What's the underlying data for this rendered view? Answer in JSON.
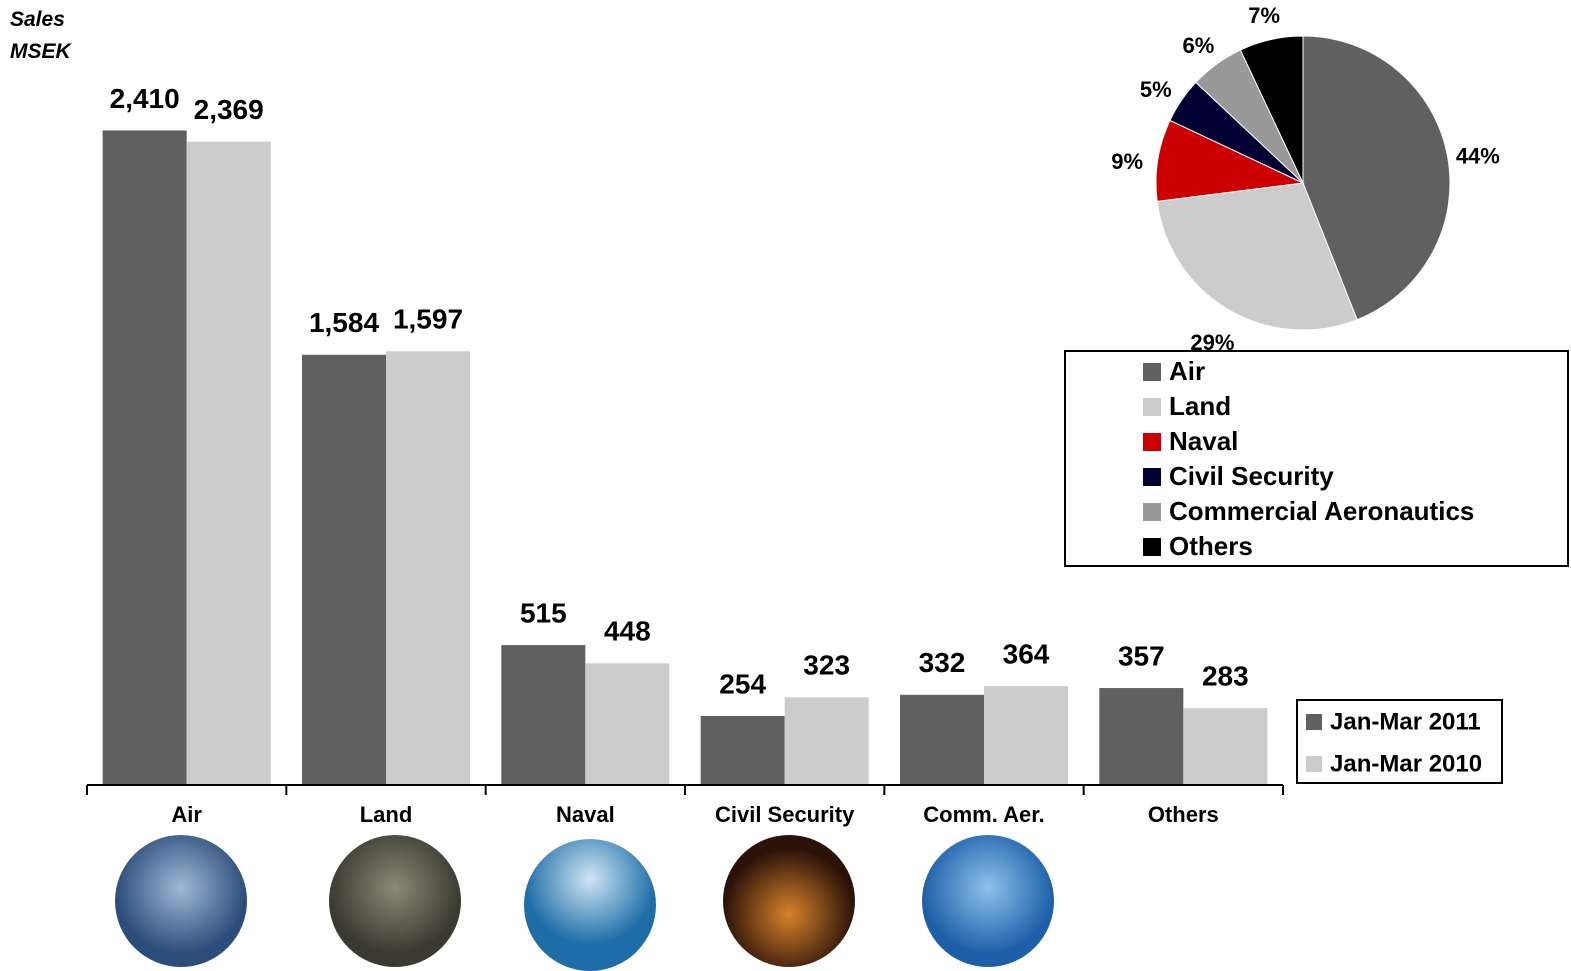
{
  "chart_data": [
    {
      "type": "bar",
      "ylabel": "Sales MSEK",
      "categories": [
        "Air",
        "Land",
        "Naval",
        "Civil Security",
        "Comm. Aer.",
        "Others"
      ],
      "series": [
        {
          "name": "Jan-Mar 2011",
          "color": "#606060",
          "values": [
            2410,
            1584,
            515,
            254,
            332,
            357
          ],
          "value_labels": [
            "2,410",
            "1,584",
            "515",
            "254",
            "332",
            "357"
          ]
        },
        {
          "name": "Jan-Mar 2010",
          "color": "#cccccc",
          "values": [
            2369,
            1597,
            448,
            323,
            364,
            283
          ],
          "value_labels": [
            "2,369",
            "1,597",
            "448",
            "323",
            "364",
            "283"
          ]
        }
      ],
      "ylim": [
        0,
        2500
      ]
    },
    {
      "type": "pie",
      "categories": [
        "Air",
        "Land",
        "Naval",
        "Civil Security",
        "Commercial Aeronautics",
        "Others"
      ],
      "values": [
        44,
        29,
        9,
        5,
        6,
        7
      ],
      "value_labels": [
        "44%",
        "29%",
        "9%",
        "5%",
        "6%",
        "7%"
      ],
      "colors": [
        "#606060",
        "#cccccc",
        "#cc0000",
        "#000033",
        "#999999",
        "#000000"
      ]
    }
  ]
}
